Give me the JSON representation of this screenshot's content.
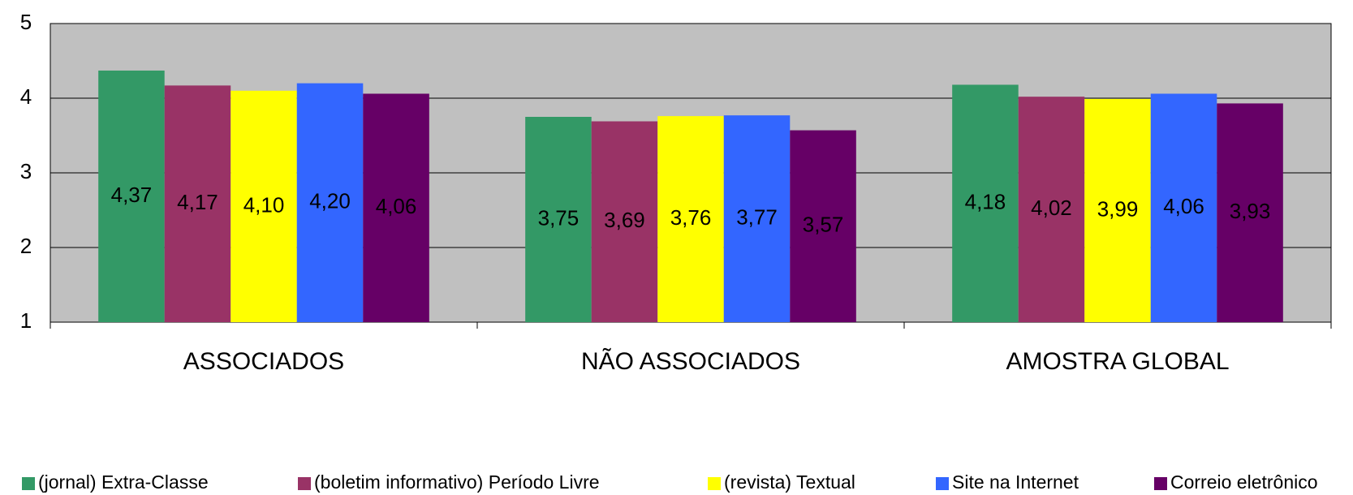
{
  "chart_data": {
    "type": "bar",
    "categories": [
      "ASSOCIADOS",
      "NÃO ASSOCIADOS",
      "AMOSTRA GLOBAL"
    ],
    "series": [
      {
        "name": "(jornal) Extra-Classe",
        "color": "#339966",
        "label_color": "#000000",
        "values": [
          4.37,
          3.75,
          4.18
        ],
        "value_labels": [
          "4,37",
          "3,75",
          "4,18"
        ]
      },
      {
        "name": "(boletim informativo) Período Livre",
        "color": "#993366",
        "label_color": "#ffffff",
        "values": [
          4.17,
          3.69,
          4.02
        ],
        "value_labels": [
          "4,17",
          "3,69",
          "4,02"
        ]
      },
      {
        "name": "(revista) Textual",
        "color": "#ffff00",
        "label_color": "#000000",
        "values": [
          4.1,
          3.76,
          3.99
        ],
        "value_labels": [
          "4,10",
          "3,76",
          "3,99"
        ]
      },
      {
        "name": "Site na Internet",
        "color": "#3366ff",
        "label_color": "#ffffff",
        "values": [
          4.2,
          3.77,
          4.06
        ],
        "value_labels": [
          "4,20",
          "3,77",
          "4,06"
        ]
      },
      {
        "name": "Correio eletrônico",
        "color": "#660066",
        "label_color": "#ffffff",
        "values": [
          4.06,
          3.57,
          3.93
        ],
        "value_labels": [
          "4,06",
          "3,57",
          "3,93"
        ]
      }
    ],
    "ylim": [
      1,
      5
    ],
    "yticks": [
      1,
      2,
      3,
      4,
      5
    ],
    "grid": true,
    "plot_background": "#c0c0c0",
    "legend": "bottom"
  }
}
